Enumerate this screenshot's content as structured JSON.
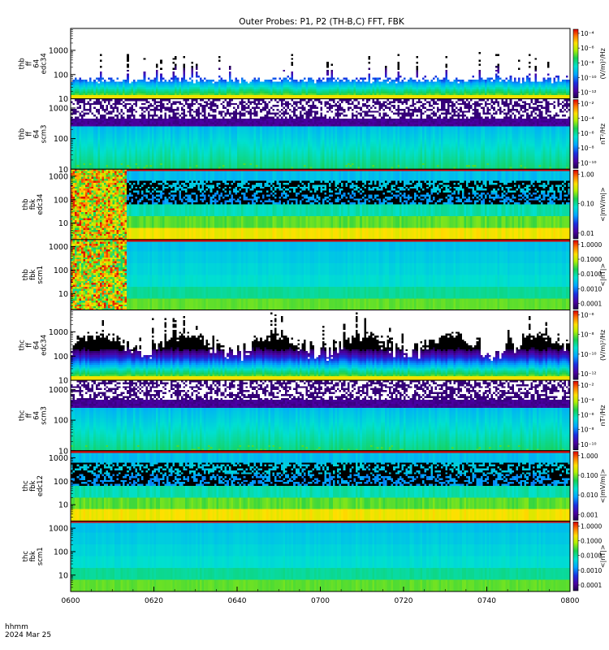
{
  "chart_data": {
    "type": "heatmap",
    "title": "Outer Probes: P1, P2 (TH-B,C) FFT, FBK",
    "time_axis": {
      "tick_labels": [
        "0600",
        "0620",
        "0640",
        "0700",
        "0720",
        "0740",
        "0800"
      ],
      "range_minutes": [
        0,
        120
      ],
      "unit_label": "hhmm",
      "date_label": "2024 Mar 25"
    },
    "panels": [
      {
        "ylabel": [
          "thb",
          "ff",
          "64",
          "edc34"
        ],
        "ylim": [
          10,
          8000
        ],
        "yscale": "log",
        "y_ticks": [
          10,
          100,
          1000
        ],
        "y_tick_labels": [
          "10",
          "100",
          "1000"
        ],
        "cbar_label": "(V/m)²/Hz",
        "cbar_ticks": [
          "10⁻⁴",
          "10⁻⁶",
          "10⁻⁸",
          "10⁻¹⁰",
          "10⁻¹²"
        ],
        "pattern": "ffE",
        "seed": 11
      },
      {
        "ylabel": [
          "thb",
          "ff",
          "64",
          "scm3"
        ],
        "ylim": [
          10,
          2000
        ],
        "yscale": "log",
        "y_ticks": [
          10,
          100,
          1000
        ],
        "y_tick_labels": [
          "10",
          "100",
          "1000"
        ],
        "cbar_label": "nT²/Hz",
        "cbar_ticks": [
          "10⁻²",
          "10⁻⁴",
          "10⁻⁶",
          "10⁻⁸",
          "10⁻¹⁰"
        ],
        "pattern": "ffB",
        "seed": 23
      },
      {
        "ylabel": [
          "thb",
          "fbk",
          "edc34"
        ],
        "ylim": [
          2,
          2000
        ],
        "yscale": "log",
        "y_ticks": [
          10,
          100,
          1000
        ],
        "y_tick_labels": [
          "10",
          "100",
          "1000"
        ],
        "cbar_label": "<|mV/m|>",
        "cbar_ticks": [
          "1.00",
          "0.10",
          "0.01"
        ],
        "pattern": "fbkE",
        "burst": true,
        "seed": 37
      },
      {
        "ylabel": [
          "thb",
          "fbk",
          "scm1"
        ],
        "ylim": [
          2,
          2000
        ],
        "yscale": "log",
        "y_ticks": [
          10,
          100,
          1000
        ],
        "y_tick_labels": [
          "10",
          "100",
          "1000"
        ],
        "cbar_label": "<|nT|>",
        "cbar_ticks": [
          "1.0000",
          "0.1000",
          "0.0100",
          "0.0010",
          "0.0001"
        ],
        "pattern": "fbkB",
        "burst": true,
        "seed": 41
      },
      {
        "ylabel": [
          "thc",
          "ff",
          "64",
          "edc34"
        ],
        "ylim": [
          10,
          8000
        ],
        "yscale": "log",
        "y_ticks": [
          10,
          100,
          1000
        ],
        "y_tick_labels": [
          "10",
          "100",
          "1000"
        ],
        "cbar_label": "(V/m)²/Hz",
        "cbar_ticks": [
          "10⁻⁶",
          "10⁻⁸",
          "10⁻¹⁰",
          "10⁻¹²"
        ],
        "pattern": "ffE2",
        "seed": 53
      },
      {
        "ylabel": [
          "thc",
          "ff",
          "64",
          "scm3"
        ],
        "ylim": [
          10,
          2000
        ],
        "yscale": "log",
        "y_ticks": [
          10,
          100,
          1000
        ],
        "y_tick_labels": [
          "10",
          "100",
          "1000"
        ],
        "cbar_label": "nT²/Hz",
        "cbar_ticks": [
          "10⁻²",
          "10⁻⁴",
          "10⁻⁶",
          "10⁻⁸",
          "10⁻¹⁰"
        ],
        "pattern": "ffB",
        "seed": 67
      },
      {
        "ylabel": [
          "thc",
          "fbk",
          "edc12"
        ],
        "ylim": [
          2,
          2000
        ],
        "yscale": "log",
        "y_ticks": [
          10,
          100,
          1000
        ],
        "y_tick_labels": [
          "10",
          "100",
          "1000"
        ],
        "cbar_label": "<|mV/m|>",
        "cbar_ticks": [
          "1.000",
          "0.100",
          "0.010",
          "0.001"
        ],
        "pattern": "fbkE",
        "burst": false,
        "seed": 79
      },
      {
        "ylabel": [
          "thc",
          "fbk",
          "scm1"
        ],
        "ylim": [
          2,
          2000
        ],
        "yscale": "log",
        "y_ticks": [
          10,
          100,
          1000
        ],
        "y_tick_labels": [
          "10",
          "100",
          "1000"
        ],
        "cbar_label": "<|nT|>",
        "cbar_ticks": [
          "1.0000",
          "0.1000",
          "0.0100",
          "0.0010",
          "0.0001"
        ],
        "pattern": "fbkB",
        "burst": false,
        "seed": 83
      }
    ]
  }
}
